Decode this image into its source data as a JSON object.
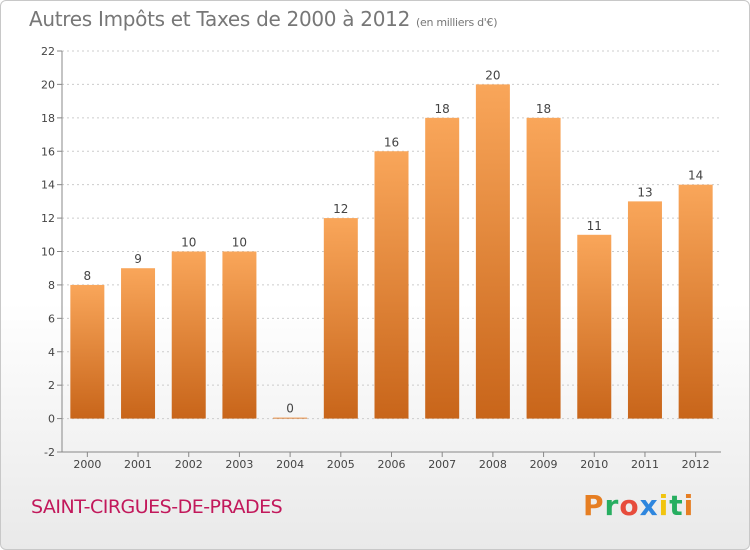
{
  "header": {
    "title": "Autres Impôts et Taxes de 2000 à 2012",
    "unit": "(en milliers d'€)"
  },
  "footer": {
    "commune": "SAINT-CIRGUES-DE-PRADES",
    "logo": {
      "letters": [
        "P",
        "r",
        "o",
        "x",
        "i",
        "t",
        "i"
      ],
      "colors": [
        "#e67e22",
        "#27ae60",
        "#e74c3c",
        "#2e86de",
        "#f1c40f",
        "#27ae60",
        "#e67e22"
      ]
    }
  },
  "colors": {
    "bar_top": "#f9a65a",
    "bar_bottom": "#c8651a",
    "grid": "#cccccc",
    "axis": "#888888"
  },
  "chart_data": {
    "type": "bar",
    "title": "Autres Impôts et Taxes de 2000 à 2012",
    "subtitle": "(en milliers d'€)",
    "categories": [
      "2000",
      "2001",
      "2002",
      "2003",
      "2004",
      "2005",
      "2006",
      "2007",
      "2008",
      "2009",
      "2010",
      "2011",
      "2012"
    ],
    "values": [
      8,
      9,
      10,
      10,
      0,
      12,
      16,
      18,
      20,
      18,
      11,
      13,
      14
    ],
    "data_labels": [
      "8",
      "9",
      "10",
      "10",
      "0",
      "12",
      "16",
      "18",
      "20",
      "18",
      "11",
      "13",
      "14"
    ],
    "yticks": [
      "-2",
      "0",
      "2",
      "4",
      "6",
      "8",
      "10",
      "12",
      "14",
      "16",
      "18",
      "20",
      "22"
    ],
    "ylim": [
      -2,
      22
    ],
    "grid": "horizontal dashed",
    "legend": "none"
  }
}
